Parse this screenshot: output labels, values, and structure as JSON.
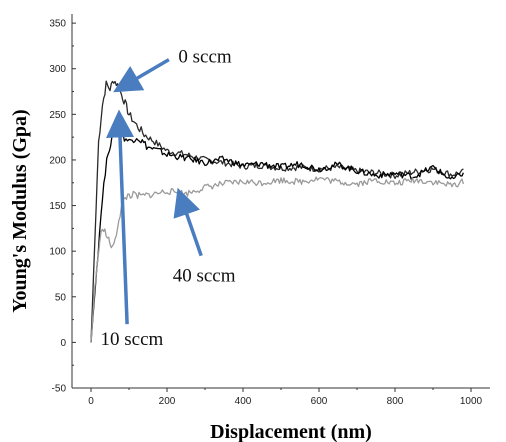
{
  "chart_data": {
    "type": "line",
    "xlabel": "Displacement (nm)",
    "ylabel": "Young's Modulus (Gpa)",
    "xlim": [
      -50,
      1050
    ],
    "ylim": [
      -50,
      360
    ],
    "x_ticks": [
      0,
      200,
      400,
      600,
      800,
      1000
    ],
    "y_ticks": [
      -50,
      0,
      50,
      100,
      150,
      200,
      250,
      300,
      350
    ],
    "grid": false,
    "legend": "none",
    "series": [
      {
        "name": "0 sccm",
        "color": "#2a2a2a",
        "points": [
          [
            0,
            0
          ],
          [
            10,
            110
          ],
          [
            20,
            220
          ],
          [
            30,
            260
          ],
          [
            40,
            283
          ],
          [
            50,
            278
          ],
          [
            60,
            288
          ],
          [
            70,
            282
          ],
          [
            80,
            272
          ],
          [
            90,
            262
          ],
          [
            100,
            250
          ],
          [
            120,
            238
          ],
          [
            140,
            228
          ],
          [
            160,
            222
          ],
          [
            180,
            216
          ],
          [
            200,
            210
          ],
          [
            250,
            206
          ],
          [
            300,
            200
          ],
          [
            350,
            197
          ],
          [
            400,
            193
          ],
          [
            450,
            194
          ],
          [
            500,
            191
          ],
          [
            550,
            192
          ],
          [
            600,
            190
          ],
          [
            650,
            192
          ],
          [
            700,
            188
          ],
          [
            750,
            186
          ],
          [
            800,
            183
          ],
          [
            850,
            187
          ],
          [
            900,
            190
          ],
          [
            950,
            184
          ],
          [
            980,
            187
          ]
        ]
      },
      {
        "name": "10 sccm",
        "color": "#000000",
        "points": [
          [
            0,
            0
          ],
          [
            15,
            80
          ],
          [
            30,
            160
          ],
          [
            45,
            210
          ],
          [
            55,
            222
          ],
          [
            70,
            238
          ],
          [
            80,
            228
          ],
          [
            100,
            220
          ],
          [
            120,
            226
          ],
          [
            150,
            214
          ],
          [
            180,
            210
          ],
          [
            200,
            206
          ],
          [
            250,
            202
          ],
          [
            300,
            197
          ],
          [
            350,
            201
          ],
          [
            400,
            194
          ],
          [
            450,
            196
          ],
          [
            500,
            192
          ],
          [
            550,
            196
          ],
          [
            600,
            190
          ],
          [
            650,
            195
          ],
          [
            700,
            188
          ],
          [
            750,
            183
          ],
          [
            800,
            185
          ],
          [
            850,
            182
          ],
          [
            900,
            192
          ],
          [
            950,
            178
          ],
          [
            980,
            186
          ]
        ]
      },
      {
        "name": "40 sccm",
        "color": "#9a9a9a",
        "points": [
          [
            0,
            0
          ],
          [
            10,
            60
          ],
          [
            20,
            100
          ],
          [
            30,
            128
          ],
          [
            40,
            118
          ],
          [
            50,
            108
          ],
          [
            60,
            104
          ],
          [
            70,
            128
          ],
          [
            80,
            148
          ],
          [
            90,
            158
          ],
          [
            100,
            162
          ],
          [
            130,
            160
          ],
          [
            160,
            162
          ],
          [
            200,
            166
          ],
          [
            250,
            163
          ],
          [
            300,
            170
          ],
          [
            350,
            174
          ],
          [
            400,
            176
          ],
          [
            450,
            175
          ],
          [
            500,
            178
          ],
          [
            550,
            176
          ],
          [
            600,
            180
          ],
          [
            650,
            176
          ],
          [
            700,
            174
          ],
          [
            750,
            178
          ],
          [
            800,
            174
          ],
          [
            850,
            178
          ],
          [
            900,
            176
          ],
          [
            950,
            172
          ],
          [
            980,
            176
          ]
        ]
      }
    ],
    "annotations": [
      {
        "text": "0 sccm",
        "x": 230,
        "y": 307,
        "arrow_from": [
          205,
          310
        ],
        "arrow_to": [
          90,
          282
        ]
      },
      {
        "text": "10 sccm",
        "x": 25,
        "y": -3,
        "arrow_from": [
          95,
          20
        ],
        "arrow_to": [
          75,
          240
        ]
      },
      {
        "text": "40 sccm",
        "x": 215,
        "y": 67,
        "arrow_from": [
          290,
          95
        ],
        "arrow_to": [
          240,
          155
        ]
      }
    ]
  }
}
